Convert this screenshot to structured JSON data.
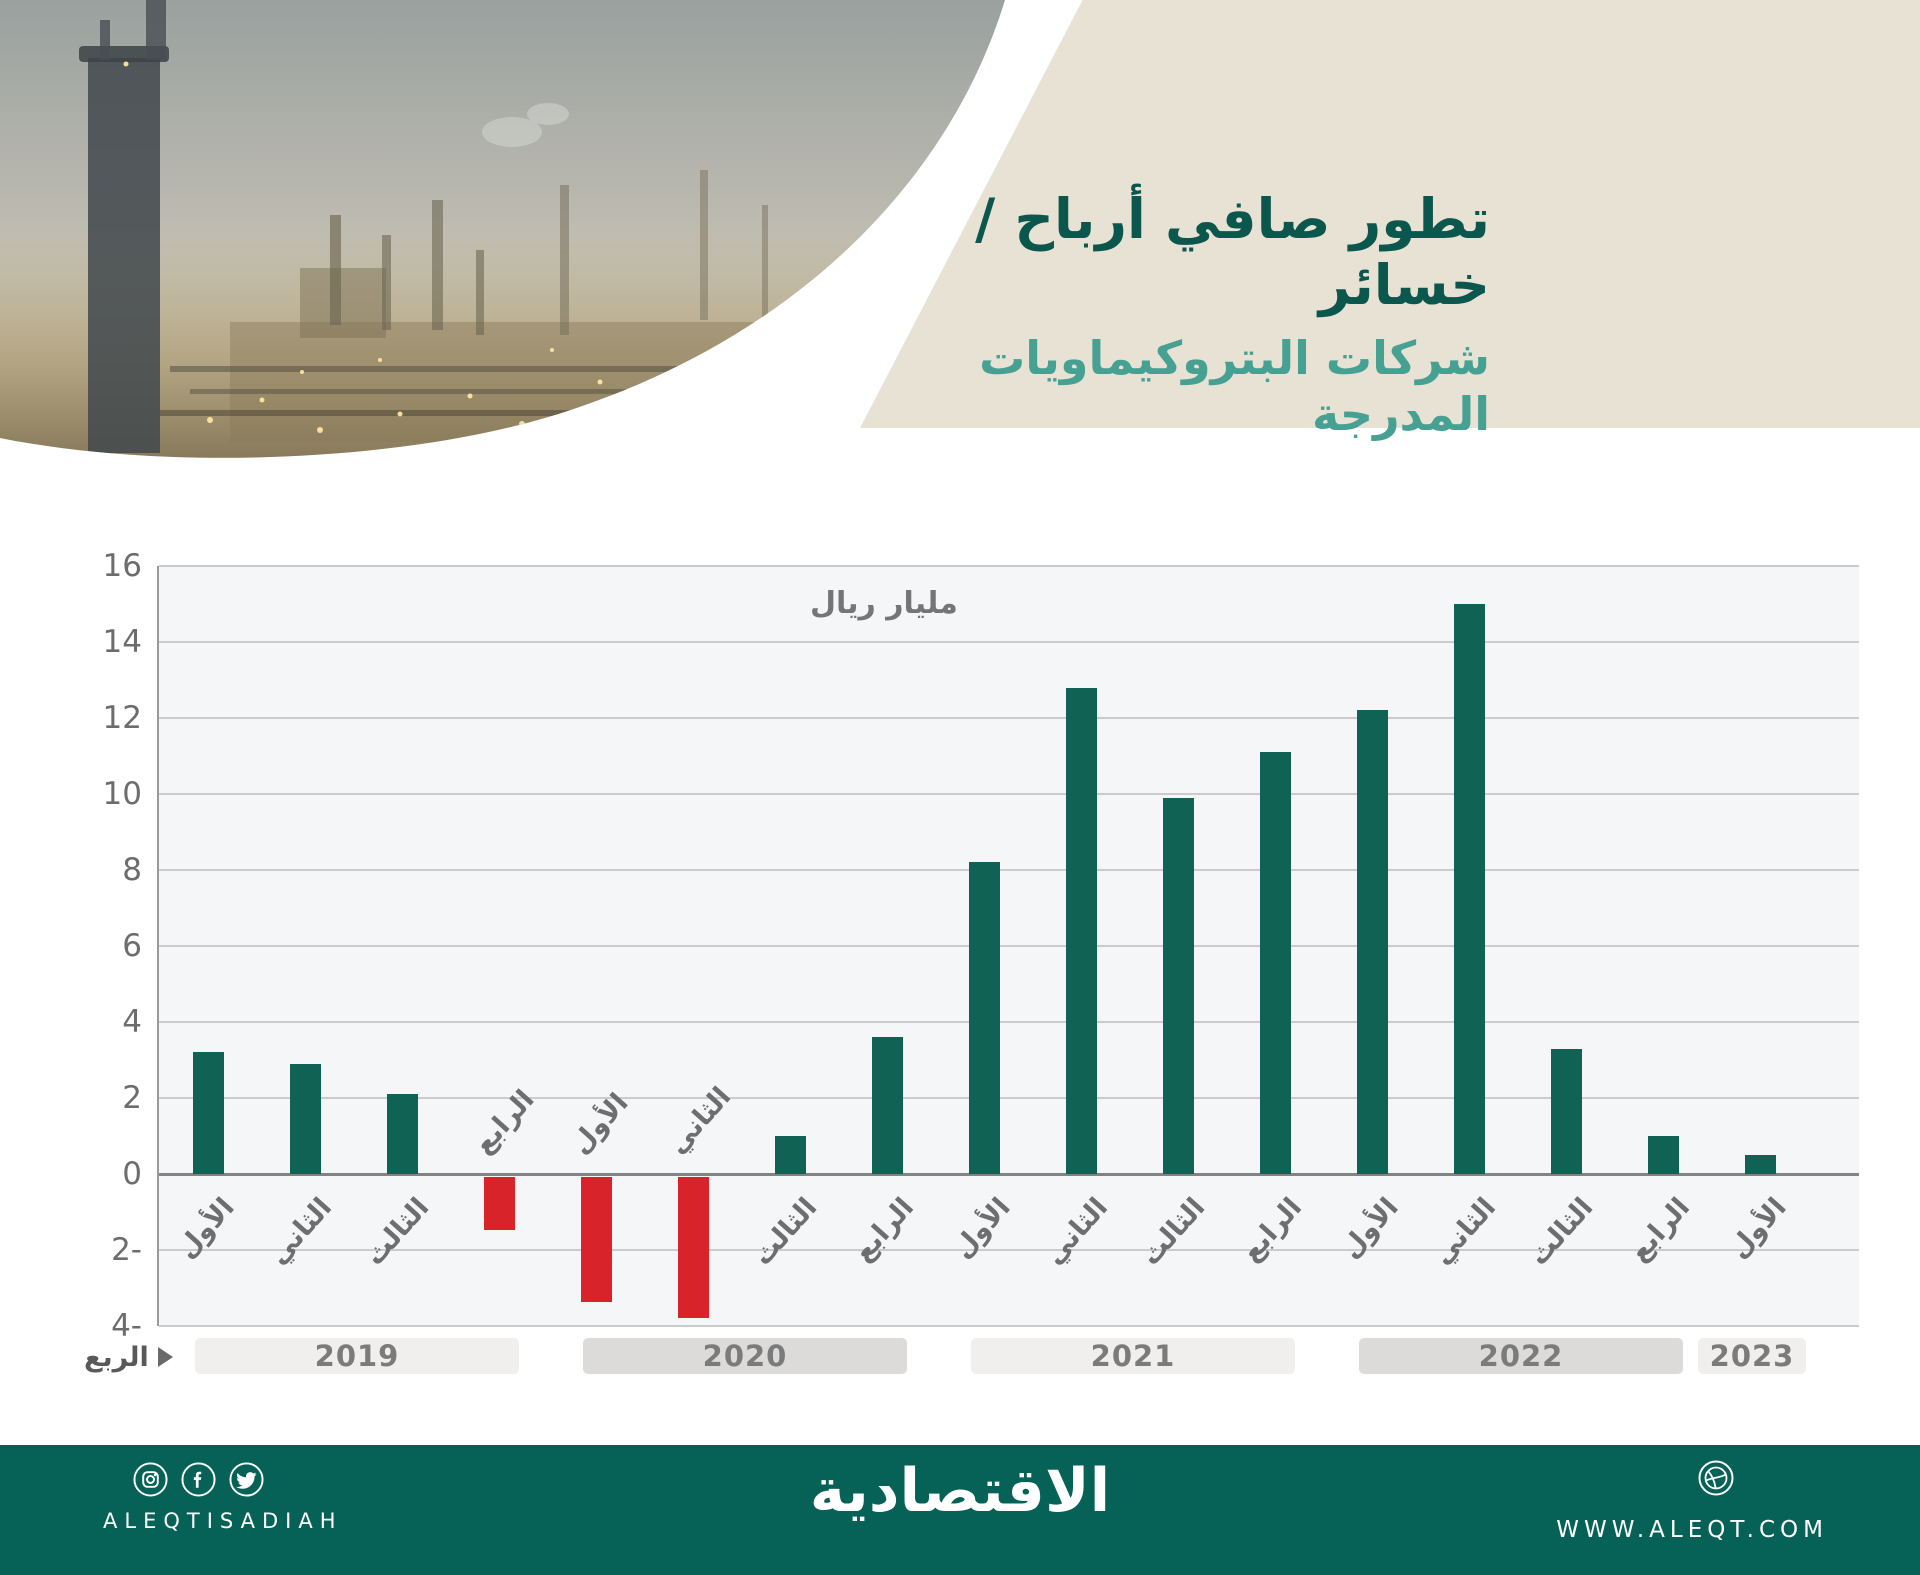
{
  "hero": {
    "title_line1": "تطور صافي أرباح / خسائر",
    "title_line2": "شركات البتروكيماويات المدرجة"
  },
  "chart_data": {
    "type": "bar",
    "title": "تطور صافي أرباح / خسائر شركات البتروكيماويات المدرجة",
    "unit_label": "مليار ريال",
    "axis_label": "الربع",
    "ylim": [
      -4,
      16
    ],
    "ytick_step": 2,
    "ytick_labels": [
      "16",
      "14",
      "12",
      "10",
      "8",
      "6",
      "4",
      "2",
      "0",
      "2-",
      "4-"
    ],
    "grid": true,
    "legend": "none",
    "categories": [
      "الأول",
      "الثاني",
      "الثالث",
      "الرابع",
      "الأول",
      "الثاني",
      "الثالث",
      "الرابع",
      "الأول",
      "الثاني",
      "الثالث",
      "الرابع",
      "الأول",
      "الثاني",
      "الثالث",
      "الرابع",
      "الأول"
    ],
    "years": [
      {
        "label": "2019",
        "quarters": 4
      },
      {
        "label": "2020",
        "quarters": 4
      },
      {
        "label": "2021",
        "quarters": 4
      },
      {
        "label": "2022",
        "quarters": 4
      },
      {
        "label": "2023",
        "quarters": 1
      }
    ],
    "values": [
      3.2,
      2.9,
      2.1,
      -1.4,
      -3.3,
      -3.7,
      1.0,
      3.6,
      8.2,
      12.8,
      9.9,
      11.1,
      12.2,
      15.0,
      3.3,
      1.0,
      0.5
    ],
    "positive_color": "#106254",
    "negative_color": "#d8232a",
    "band_colors": [
      "#f0efee",
      "#dcdbda"
    ]
  },
  "footer": {
    "brand_arabic": "الاقتصادية",
    "brand_latin": "ALEQTISADIAH",
    "website": "WWW.ALEQT.COM",
    "icons": [
      "instagram-icon",
      "facebook-icon",
      "twitter-icon",
      "dribbble-icon"
    ]
  }
}
